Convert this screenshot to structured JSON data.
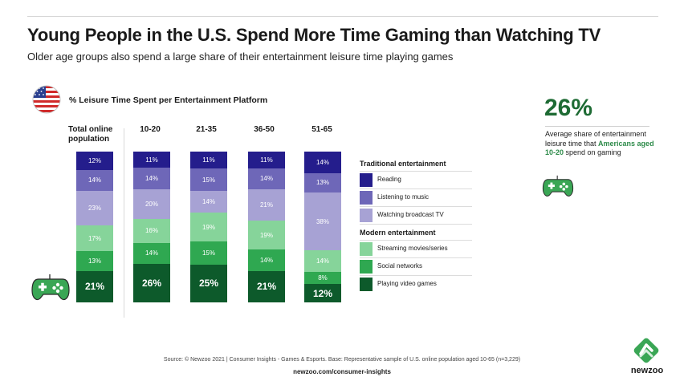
{
  "header": {
    "title": "Young People in the U.S. Spend More Time Gaming than Watching TV",
    "subtitle": "Older age groups also spend a large share of their entertainment leisure time playing games"
  },
  "chart_data": {
    "type": "bar",
    "stacked": true,
    "title": "% Leisure Time Spent per Entertainment Platform",
    "categories": [
      "Total online population",
      "10-20",
      "21-35",
      "36-50",
      "51-65"
    ],
    "series": [
      {
        "name": "Playing video games",
        "color": "#0d5a2b",
        "values": [
          21,
          26,
          25,
          21,
          12
        ],
        "labels": [
          "21%",
          "26%",
          "25%",
          "21%",
          "12%"
        ]
      },
      {
        "name": "Social networks",
        "color": "#2fa851",
        "values": [
          13,
          14,
          15,
          14,
          8
        ],
        "labels": [
          "13%",
          "14%",
          "15%",
          "14%",
          "8%"
        ]
      },
      {
        "name": "Streaming movies/series",
        "color": "#86d49a",
        "values": [
          17,
          16,
          19,
          19,
          14
        ],
        "labels": [
          "17%",
          "16%",
          "19%",
          "19%",
          "14%"
        ]
      },
      {
        "name": "Watching broadcast TV",
        "color": "#a7a2d4",
        "values": [
          23,
          20,
          14,
          21,
          38
        ],
        "labels": [
          "23%",
          "20%",
          "14%",
          "21%",
          "38%"
        ]
      },
      {
        "name": "Listening to music",
        "color": "#6e67b8",
        "values": [
          14,
          14,
          15,
          14,
          13
        ],
        "labels": [
          "14%",
          "14%",
          "15%",
          "14%",
          "13%"
        ]
      },
      {
        "name": "Reading",
        "color": "#241d8c",
        "values": [
          12,
          11,
          11,
          11,
          14
        ],
        "labels": [
          "12%",
          "11%",
          "11%",
          "11%",
          "14%"
        ]
      }
    ],
    "legend": {
      "groups": [
        {
          "heading": "Traditional entertainment",
          "items": [
            "Reading",
            "Listening to music",
            "Watching broadcast TV"
          ]
        },
        {
          "heading": "Modern entertainment",
          "items": [
            "Streaming movies/series",
            "Social networks",
            "Playing video games"
          ]
        }
      ]
    }
  },
  "stat": {
    "value": "26%",
    "text_before": "Average share of entertainment leisure time that ",
    "highlight": "Americans aged 10-20",
    "text_after": " spend on gaming"
  },
  "footer": {
    "source": "Source: © Newzoo 2021 | Consumer Insights - Games & Esports. Base: Representative sample of U.S. online population aged 10-65 (n=3,229)",
    "link": "newzoo.com/consumer-insights",
    "brand": "newzoo"
  },
  "icons": [
    "us-flag-icon",
    "game-controller-icon",
    "newzoo-logo"
  ]
}
